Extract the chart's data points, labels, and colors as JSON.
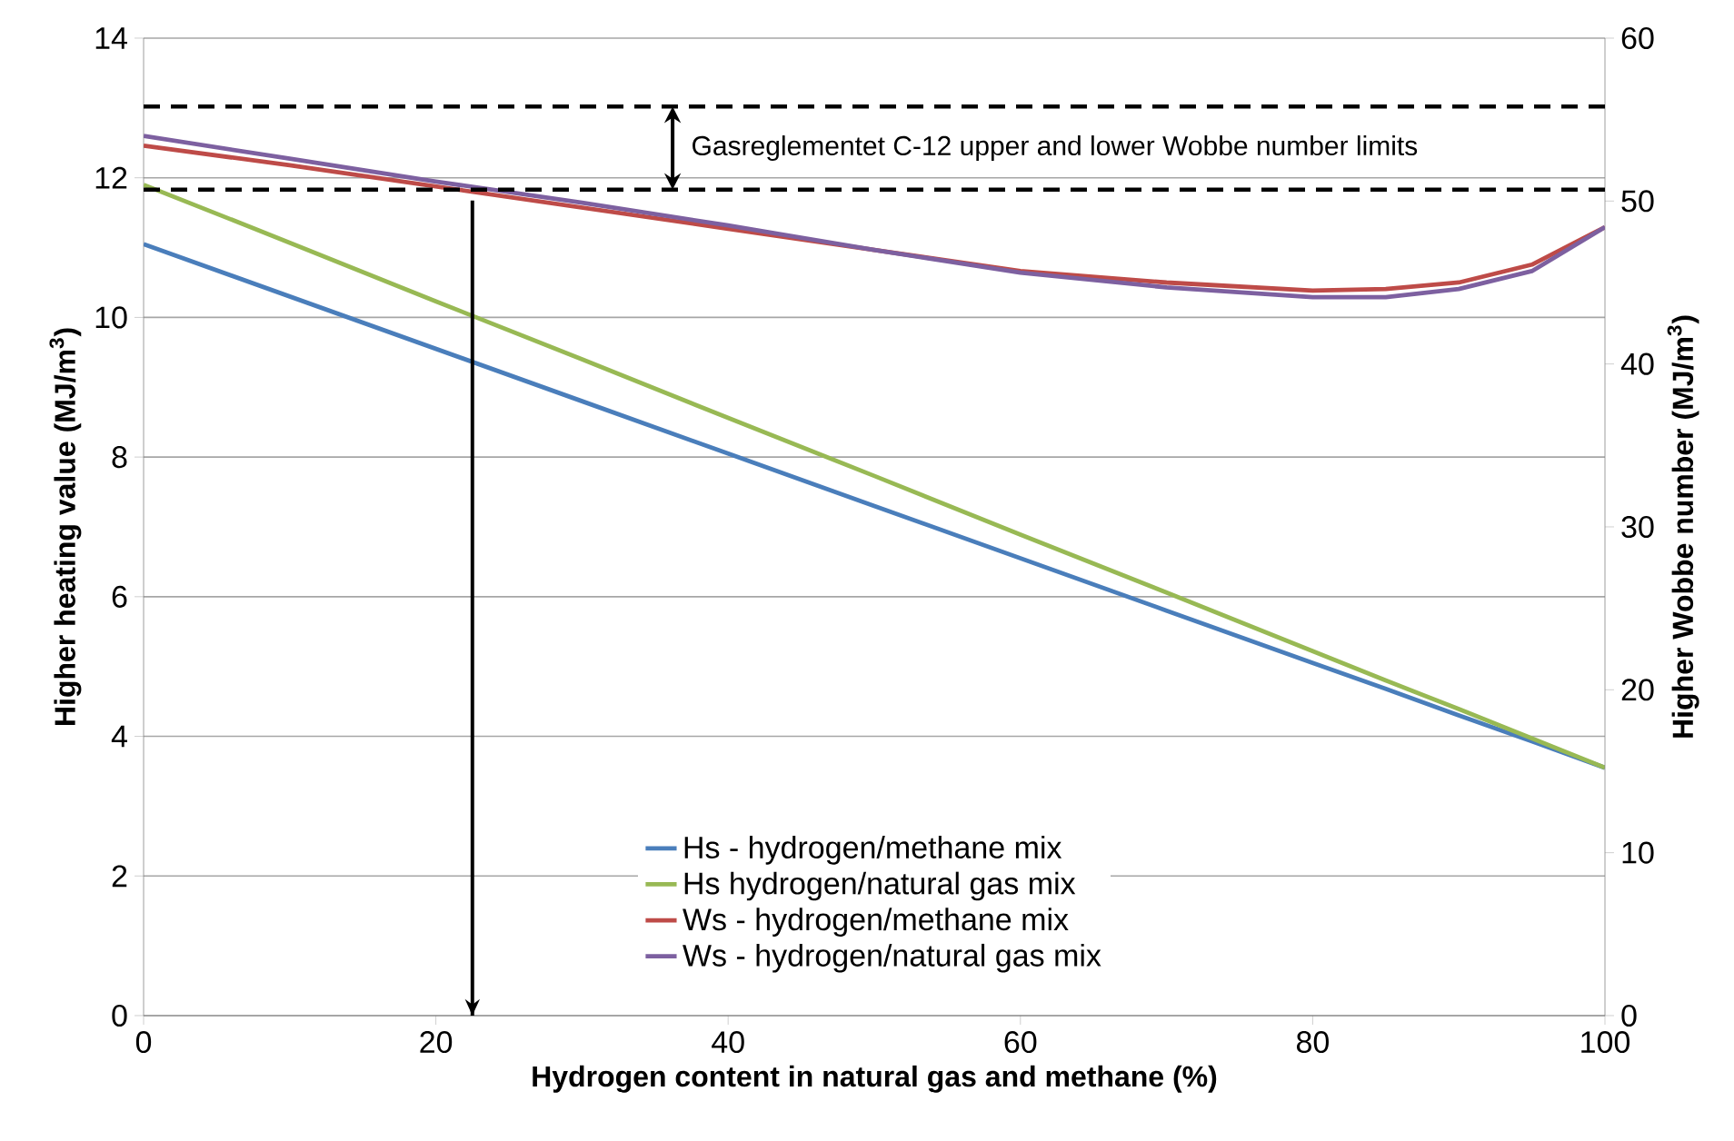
{
  "chart_data": {
    "type": "line",
    "xlabel": "Hydrogen content in natural gas and methane (%)",
    "ylabel": "Higher heating value (MJ/m$^{3}$)",
    "y2label": "Higher Wobbe number (MJ/m$^{3}$)",
    "x": [
      0,
      10,
      20,
      30,
      40,
      50,
      60,
      70,
      80,
      85,
      90,
      95,
      100
    ],
    "xlim": [
      0,
      100
    ],
    "xticks": [
      0,
      20,
      40,
      60,
      80,
      100
    ],
    "ylim": [
      0,
      14
    ],
    "yticks": [
      0,
      2,
      4,
      6,
      8,
      10,
      12,
      14
    ],
    "y2lim": [
      0,
      60
    ],
    "y2ticks": [
      0,
      10,
      20,
      30,
      40,
      50,
      60
    ],
    "grid": "y",
    "legend": "bottom",
    "series": [
      {
        "name": "Hs - hydrogen/methane mix",
        "color": "#4a7ebb",
        "values": [
          11.05,
          10.3,
          9.55,
          8.8,
          8.05,
          7.3,
          6.55,
          5.8,
          5.05,
          4.68,
          4.3,
          3.93,
          3.55
        ]
      },
      {
        "name": "Hs hydrogen/natural gas mix",
        "color": "#98b954",
        "values": [
          11.9,
          11.07,
          10.23,
          9.4,
          8.56,
          7.73,
          6.89,
          6.06,
          5.22,
          4.8,
          4.39,
          3.97,
          3.55
        ]
      },
      {
        "name": "Ws - hydrogen/methane mix",
        "color": "#be4b48",
        "axis": "y2",
        "values": [
          53.4,
          52.2,
          50.9,
          49.6,
          48.3,
          47.0,
          45.7,
          45.0,
          44.5,
          44.6,
          45.0,
          46.1,
          48.4
        ]
      },
      {
        "name": "Ws - hydrogen/natural gas mix",
        "color": "#7d60a0",
        "axis": "y2",
        "values": [
          54.0,
          52.6,
          51.2,
          49.9,
          48.5,
          47.0,
          45.6,
          44.7,
          44.1,
          44.1,
          44.6,
          45.7,
          48.4
        ]
      }
    ],
    "ref_lines": [
      {
        "axis": "y2",
        "value": 55.8,
        "color": "#000000",
        "line_style": "dashed"
      },
      {
        "axis": "y2",
        "value": 50.7,
        "color": "#000000",
        "line_style": "dashed"
      },
      {
        "axis": "x",
        "value": 22.5,
        "color": "#000000"
      }
    ],
    "annotations": [
      "Gasreglementet C-12 upper and lower Wobbe number limits"
    ]
  }
}
